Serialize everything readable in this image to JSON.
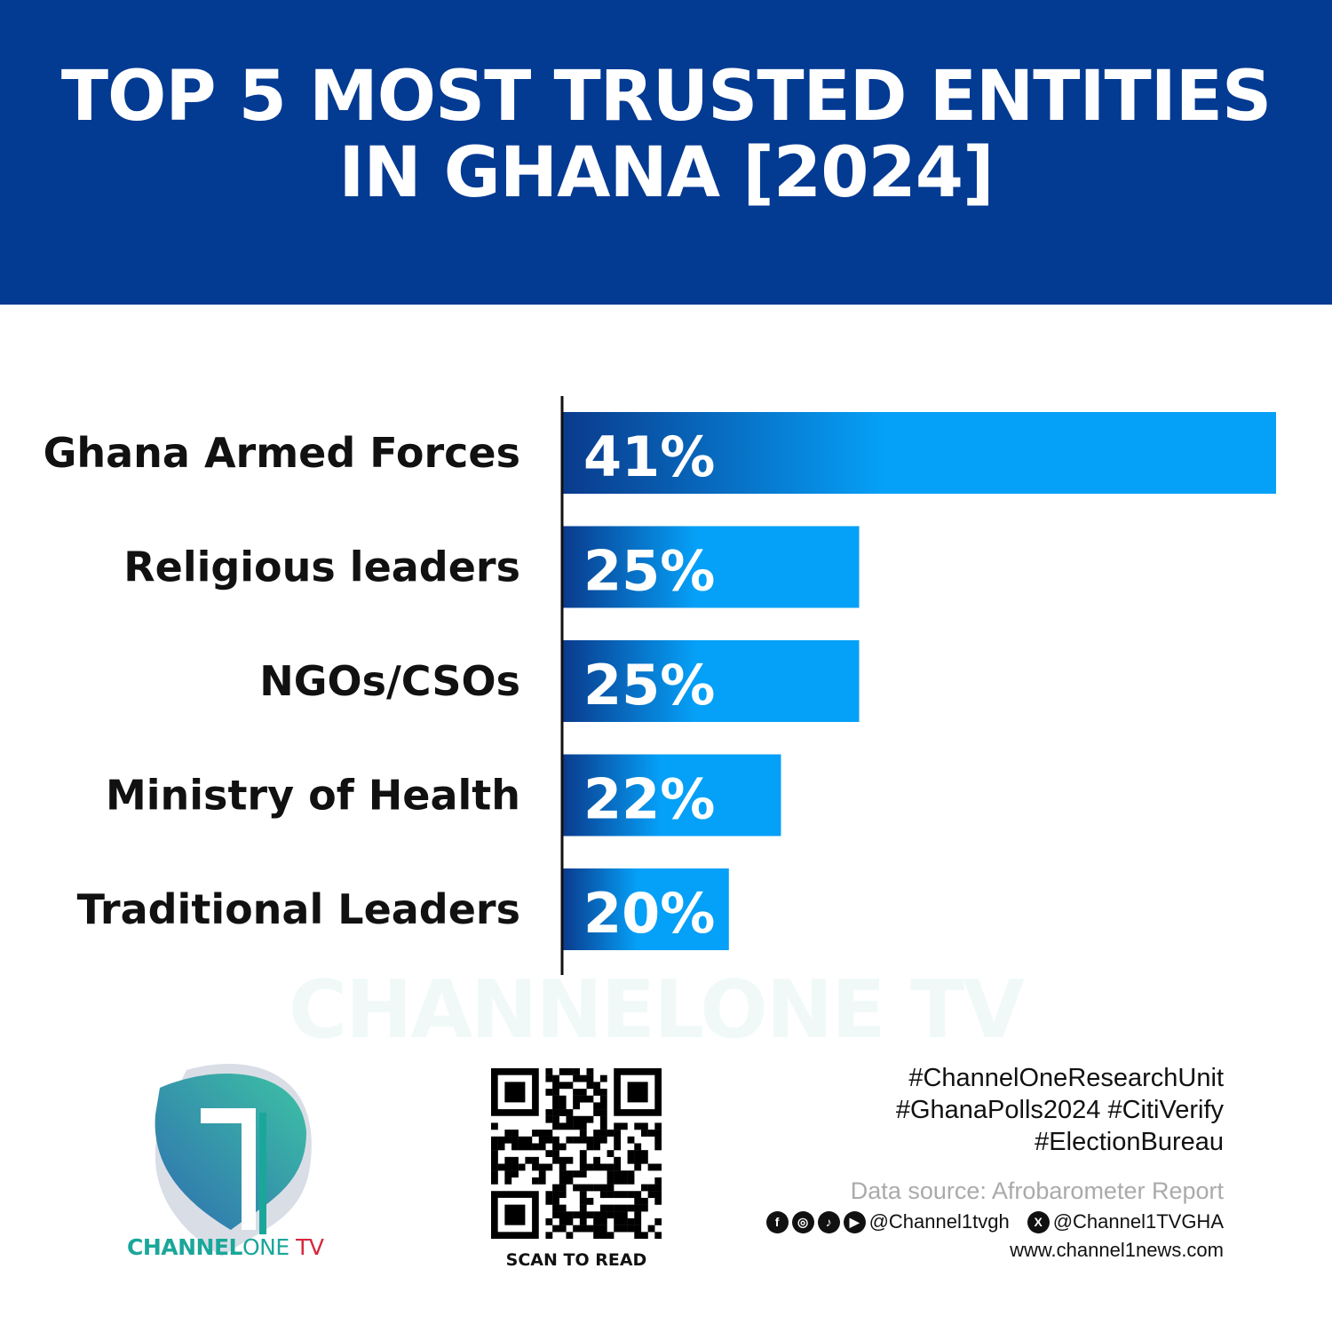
{
  "header": {
    "title_line1": "TOP 5 MOST TRUSTED ENTITIES",
    "title_line2": "IN GHANA [2024]"
  },
  "colors": {
    "header": "#033a92",
    "bar_start": "#0a3a8c",
    "bar_end": "#05a0f7",
    "brand_teal": "#1aa79a",
    "brand_red": "#d7263d"
  },
  "chart_data": {
    "type": "bar",
    "orientation": "horizontal",
    "categories": [
      "Ghana Armed Forces",
      "Religious leaders",
      "NGOs/CSOs",
      "Ministry of Health",
      "Traditional Leaders"
    ],
    "values": [
      41,
      25,
      25,
      22,
      20
    ],
    "data_labels": [
      "41%",
      "25%",
      "25%",
      "22%",
      "20%"
    ],
    "xlim": [
      13.6,
      41
    ],
    "grid": false,
    "title": "TOP 5 MOST TRUSTED ENTITIES IN GHANA [2024]"
  },
  "watermark": "CHANNELONE TV",
  "logo": {
    "part1": "CHANNEL",
    "part2": "ONE",
    "part3": " TV"
  },
  "qr": {
    "label": "SCAN TO READ"
  },
  "footer": {
    "hashtags": [
      "#ChannelOneResearchUnit",
      "#GhanaPolls2024 #CitiVerify",
      "#ElectionBureau"
    ],
    "source": "Data source: Afrobarometer Report",
    "handle1": "@Channel1tvgh",
    "handle2": "@Channel1TVGHA",
    "website": "www.channel1news.com",
    "icons": [
      "facebook-icon",
      "instagram-icon",
      "tiktok-icon",
      "youtube-icon",
      "x-icon"
    ]
  }
}
